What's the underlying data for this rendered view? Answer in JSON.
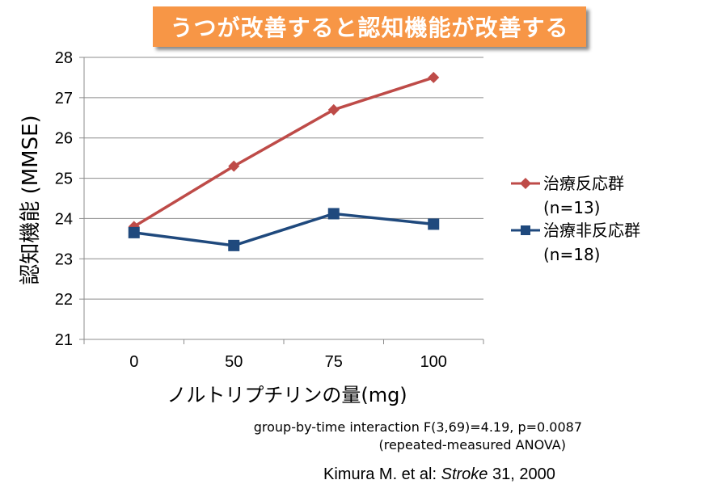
{
  "banner": {
    "title": "うつが改善すると認知機能が改善する"
  },
  "chart_data": {
    "type": "line",
    "title": "",
    "xlabel": "ノルトリプチリンの量(mg)",
    "ylabel": "認知機能 (MMSE)",
    "categories": [
      "0",
      "50",
      "75",
      "100"
    ],
    "ylim": [
      21,
      28
    ],
    "yticks": [
      "21",
      "22",
      "23",
      "24",
      "25",
      "26",
      "27",
      "28"
    ],
    "grid": true,
    "legend_position": "right",
    "series": [
      {
        "name": "治療反応群",
        "name_sub": "(n=13)",
        "color": "#be4b48",
        "marker": "diamond",
        "values": [
          23.8,
          25.3,
          26.7,
          27.5
        ]
      },
      {
        "name": "治療非反応群",
        "name_sub": "(n=18)",
        "color": "#1f497d",
        "marker": "square",
        "values": [
          23.65,
          23.33,
          24.12,
          23.86
        ]
      }
    ]
  },
  "annotations": {
    "stats_line1": "group-by-time  interaction  F(3,69)=4.19,  p=0.0087",
    "stats_line2": "(repeated-measured  ANOVA)",
    "citation_authors": "Kimura M. et al: ",
    "citation_journal": "Stroke",
    "citation_rest": " 31, 2000"
  }
}
